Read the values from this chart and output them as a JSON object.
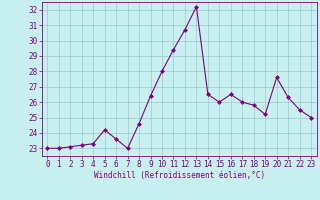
{
  "x": [
    0,
    1,
    2,
    3,
    4,
    5,
    6,
    7,
    8,
    9,
    10,
    11,
    12,
    13,
    14,
    15,
    16,
    17,
    18,
    19,
    20,
    21,
    22,
    23
  ],
  "y": [
    23.0,
    23.0,
    23.1,
    23.2,
    23.3,
    24.2,
    23.6,
    23.0,
    24.6,
    26.4,
    28.0,
    29.4,
    30.7,
    32.2,
    26.5,
    26.0,
    26.5,
    26.0,
    25.8,
    25.2,
    27.6,
    26.3,
    25.5,
    25.0
  ],
  "line_color": "#800080",
  "marker": "D",
  "marker_size": 2,
  "background_color": "#c8f0f0",
  "grid_color": "#a0c8c8",
  "xlabel": "Windchill (Refroidissement éolien,°C)",
  "xlim": [
    -0.5,
    23.5
  ],
  "ylim": [
    22.5,
    32.5
  ],
  "yticks": [
    23,
    24,
    25,
    26,
    27,
    28,
    29,
    30,
    31,
    32
  ],
  "xticks": [
    0,
    1,
    2,
    3,
    4,
    5,
    6,
    7,
    8,
    9,
    10,
    11,
    12,
    13,
    14,
    15,
    16,
    17,
    18,
    19,
    20,
    21,
    22,
    23
  ],
  "label_fontsize": 5.5,
  "tick_fontsize": 5.5,
  "axis_color": "#800080"
}
